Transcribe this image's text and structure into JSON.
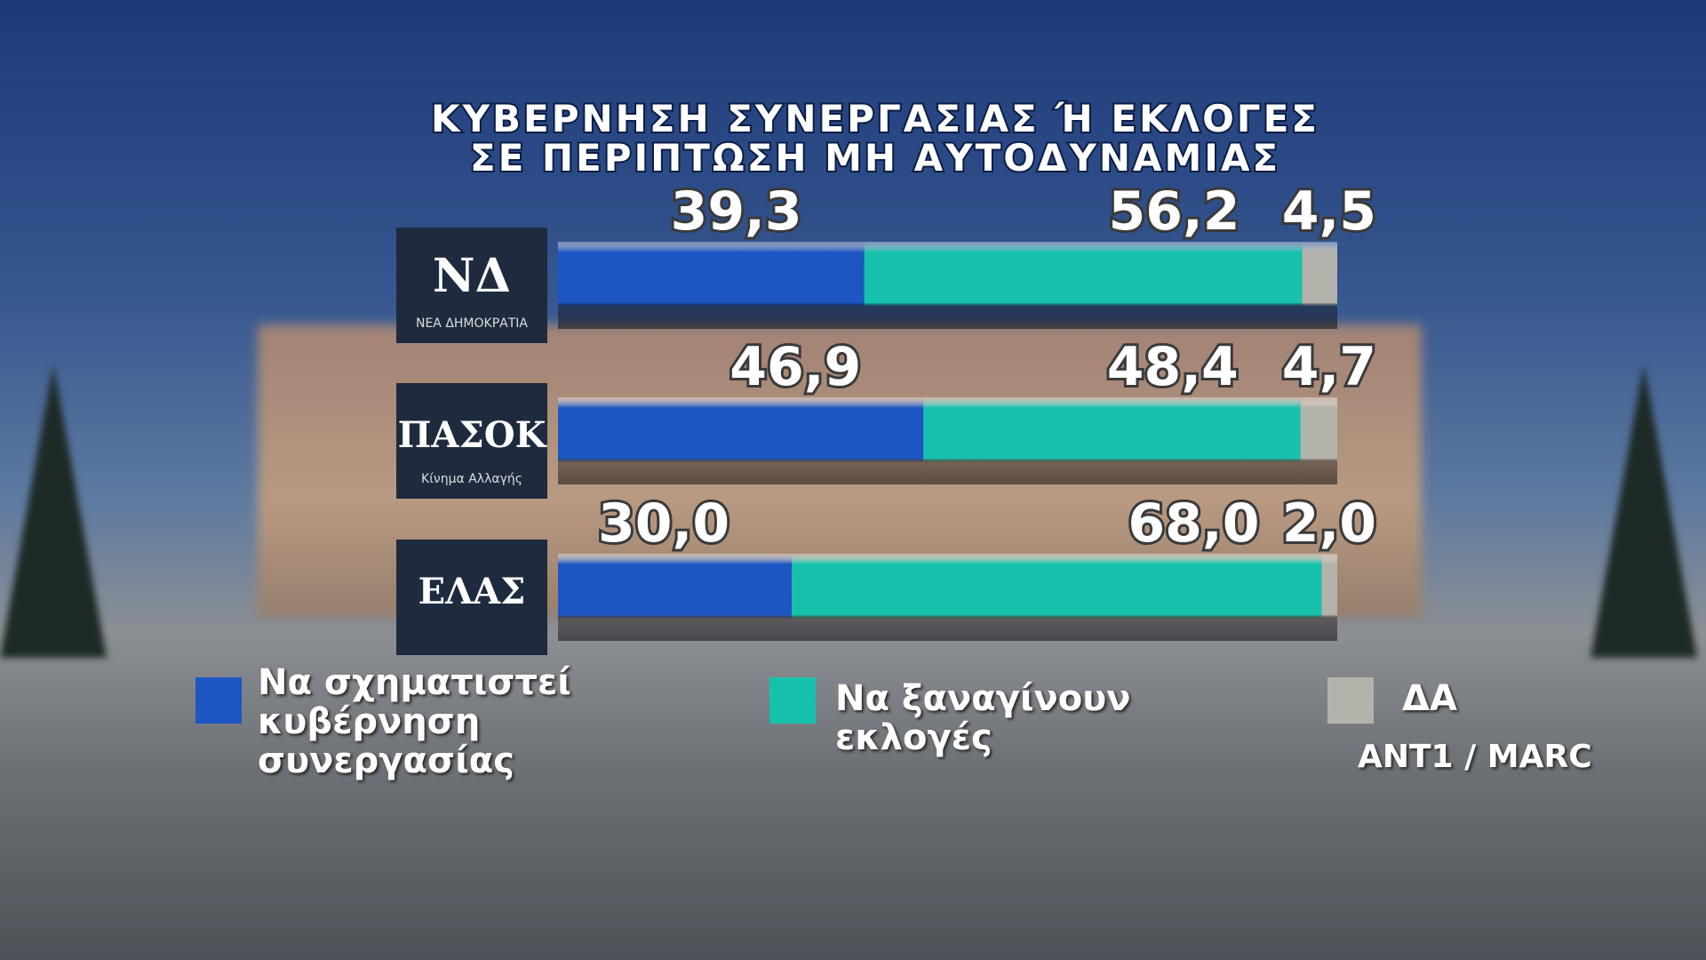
{
  "chart_data": {
    "type": "stacked-bar-horizontal",
    "title": "ΚΥΒΕΡΝΗΣΗ ΣΥΝΕΡΓΑΣΙΑΣ Ή ΕΚΛΟΓΕΣ\nΣΕ ΠΕΡΙΠΤΩΣΗ ΜΗ ΑΥΤΟΔΥΝΑΜΙΑΣ",
    "categories": [
      "ΝΔ",
      "ΠΑΣΟΚ",
      "ΕΛΑΣ"
    ],
    "category_taglines": {
      "ΝΔ": "ΝΕΑ ΔΗΜΟΚΡΑΤΙΑ",
      "ΠΑΣΟΚ": "Κίνημα Αλλαγής"
    },
    "xlim": [
      0,
      100
    ],
    "series": [
      {
        "name": "Να σχηματιστεί κυβέρνηση συνεργασίας",
        "color": "#1d56c2",
        "values": [
          39.3,
          46.9,
          30.0
        ],
        "value_labels": [
          "39,3",
          "46,9",
          "30,0"
        ]
      },
      {
        "name": "Να ξαναγίνουν εκλογές",
        "color": "#17c2ad",
        "values": [
          56.2,
          48.4,
          68.0
        ],
        "value_labels": [
          "56,2",
          "48,4",
          "68,0"
        ]
      },
      {
        "name": "ΔΑ",
        "color": "#b4b3ab",
        "values": [
          4.5,
          4.7,
          2.0
        ],
        "value_labels": [
          "4,5",
          "4,7",
          "2,0"
        ]
      }
    ],
    "source": "ANT1 / MARC"
  }
}
